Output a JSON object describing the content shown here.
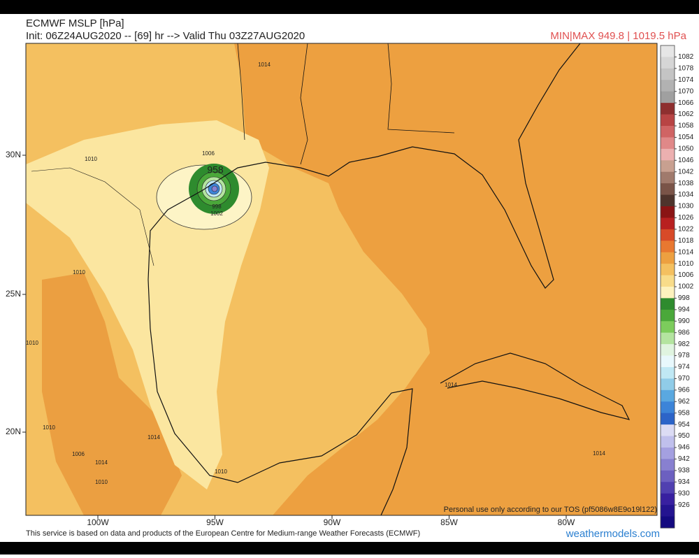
{
  "header": {
    "title": "ECMWF MSLP [hPa]",
    "init": "Init: 06Z24AUG2020 -- [69] hr --> Valid Thu 03Z27AUG2020",
    "minmax": "MIN|MAX 949.8 | 1019.5 hPa"
  },
  "colorbar": {
    "labels": [
      1082,
      1078,
      1074,
      1070,
      1066,
      1062,
      1058,
      1054,
      1050,
      1046,
      1042,
      1038,
      1034,
      1030,
      1026,
      1022,
      1018,
      1014,
      1010,
      1006,
      1002,
      998,
      994,
      990,
      986,
      982,
      978,
      974,
      970,
      966,
      962,
      958,
      954,
      950,
      946,
      942,
      938,
      934,
      930,
      926
    ],
    "colors": [
      "#e6e6e6",
      "#d6d6d6",
      "#c4c4c4",
      "#b2b2b2",
      "#a0a0a0",
      "#8e2f2f",
      "#b84444",
      "#d06464",
      "#e08888",
      "#ecb0b0",
      "#c8a090",
      "#a07a6c",
      "#7a5448",
      "#4e342c",
      "#8a1414",
      "#b82020",
      "#d84a28",
      "#e87830",
      "#eda040",
      "#f4c060",
      "#f8dc8a",
      "#fdf2be",
      "#2e8b2e",
      "#4aa83a",
      "#7ccc5c",
      "#b4e4a0",
      "#e0f4e0",
      "#e8f8fc",
      "#c0e8f4",
      "#90cce8",
      "#5aa8e0",
      "#3c84d8",
      "#2c64c8",
      "#dcdcf4",
      "#c0c0ec",
      "#a4a0e0",
      "#8880d0",
      "#6c60c0",
      "#5040b0",
      "#3820a0",
      "#241490",
      "#140a80"
    ]
  },
  "axes": {
    "longitudes": [
      "100W",
      "95W",
      "90W",
      "85W",
      "80W"
    ],
    "latitudes": [
      "30N",
      "25N",
      "20N"
    ]
  },
  "contour_labels": [
    "1014",
    "1006",
    "1010",
    "958",
    "998",
    "1002",
    "1010",
    "1010",
    "1010",
    "1014",
    "1006",
    "1014",
    "1010",
    "1010",
    "1014",
    "1014"
  ],
  "footer": {
    "tos": "Personal use only according to our TOS (pf5086w8E9o19l122)",
    "attribution": "This service is based on data and products of the European Centre for Medium-range Weather Forecasts (ECMWF)",
    "site": "weathermodels.com"
  }
}
